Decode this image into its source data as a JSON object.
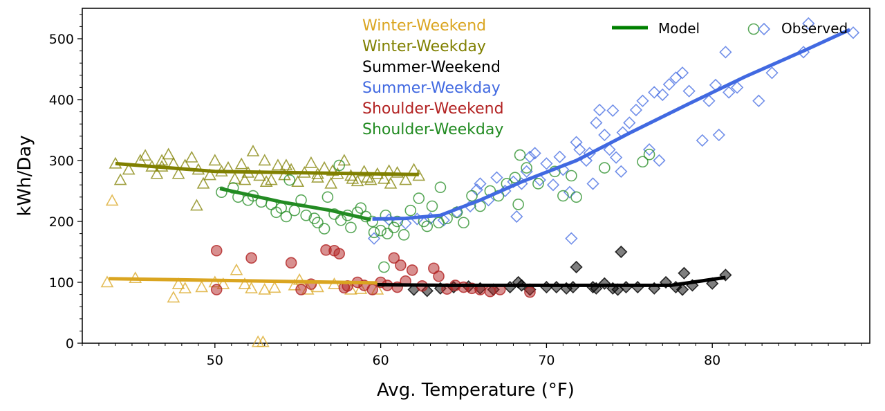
{
  "chart_data": {
    "type": "scatter",
    "xlabel": "Avg. Temperature (°F)",
    "ylabel": "kWh/Day",
    "xlim": [
      42,
      89.5
    ],
    "ylim": [
      0,
      550
    ],
    "xticks": [
      50,
      60,
      70,
      80
    ],
    "yticks": [
      0,
      100,
      200,
      300,
      400,
      500
    ],
    "legend": {
      "model_label": "Model",
      "observed_label": "Observed",
      "position": "top-right"
    },
    "series": [
      {
        "name": "Winter-Weekend",
        "color": "#DAA520",
        "marker": "triangle-open",
        "model": [
          [
            43.6,
            106
          ],
          [
            59.8,
            99
          ]
        ],
        "points": [
          [
            43.5,
            100
          ],
          [
            43.8,
            234
          ],
          [
            45.2,
            107
          ],
          [
            47.8,
            97
          ],
          [
            48.2,
            90
          ],
          [
            49.2,
            92
          ],
          [
            50,
            100
          ],
          [
            50.5,
            97
          ],
          [
            51.3,
            120
          ],
          [
            51.8,
            97
          ],
          [
            52.2,
            90
          ],
          [
            53,
            88
          ],
          [
            53.6,
            91
          ],
          [
            54.8,
            95
          ],
          [
            55.1,
            104
          ],
          [
            55.6,
            88
          ],
          [
            56.2,
            92
          ],
          [
            57.2,
            97
          ],
          [
            58.2,
            88
          ],
          [
            58.8,
            89
          ],
          [
            59.8,
            88
          ],
          [
            52.6,
            2
          ],
          [
            52.9,
            2
          ],
          [
            47.5,
            75
          ]
        ]
      },
      {
        "name": "Winter-Weekday",
        "color": "#808000",
        "marker": "triangle-open",
        "model": [
          [
            44,
            295
          ],
          [
            50,
            282
          ],
          [
            62.3,
            277
          ]
        ],
        "points": [
          [
            44,
            295
          ],
          [
            44.3,
            268
          ],
          [
            44.8,
            285
          ],
          [
            45.5,
            300
          ],
          [
            45.8,
            308
          ],
          [
            46.2,
            290
          ],
          [
            46.5,
            278
          ],
          [
            46.8,
            300
          ],
          [
            47.2,
            310
          ],
          [
            47.5,
            295
          ],
          [
            47.8,
            278
          ],
          [
            48.2,
            292
          ],
          [
            48.6,
            305
          ],
          [
            49,
            285
          ],
          [
            49.3,
            262
          ],
          [
            49.7,
            276
          ],
          [
            50,
            300
          ],
          [
            50.4,
            282
          ],
          [
            50.8,
            288
          ],
          [
            51.2,
            270
          ],
          [
            51.6,
            294
          ],
          [
            52,
            280
          ],
          [
            52.3,
            315
          ],
          [
            52.7,
            275
          ],
          [
            53,
            300
          ],
          [
            53.4,
            268
          ],
          [
            53.8,
            292
          ],
          [
            54.2,
            276
          ],
          [
            54.6,
            285
          ],
          [
            55,
            265
          ],
          [
            55.4,
            280
          ],
          [
            55.8,
            296
          ],
          [
            56.2,
            272
          ],
          [
            56.6,
            288
          ],
          [
            57,
            262
          ],
          [
            57.4,
            278
          ],
          [
            57.8,
            300
          ],
          [
            58.2,
            275
          ],
          [
            58.6,
            266
          ],
          [
            59,
            282
          ],
          [
            59.4,
            268
          ],
          [
            59.8,
            278
          ],
          [
            60.2,
            270
          ],
          [
            60.6,
            262
          ],
          [
            61,
            280
          ],
          [
            61.5,
            268
          ],
          [
            62,
            285
          ],
          [
            62.3,
            275
          ],
          [
            48.9,
            226
          ],
          [
            46.8,
            290
          ],
          [
            53.1,
            265
          ],
          [
            57.1,
            283
          ],
          [
            59.2,
            272
          ],
          [
            56.2,
            278
          ],
          [
            51.8,
            268
          ],
          [
            54.3,
            292
          ],
          [
            58.3,
            270
          ],
          [
            60.5,
            283
          ]
        ]
      },
      {
        "name": "Summer-Weekend",
        "color": "#000000",
        "marker": "diamond-filled",
        "model": [
          [
            59.8,
            96
          ],
          [
            64,
            95
          ],
          [
            72,
            95
          ],
          [
            77.5,
            95
          ],
          [
            80.8,
            108
          ]
        ],
        "points": [
          [
            62,
            88
          ],
          [
            62.8,
            86
          ],
          [
            63.6,
            90
          ],
          [
            64.4,
            92
          ],
          [
            65.3,
            93
          ],
          [
            66,
            90
          ],
          [
            66.8,
            88
          ],
          [
            67.8,
            92
          ],
          [
            68.3,
            100
          ],
          [
            69,
            88
          ],
          [
            70,
            92
          ],
          [
            70.6,
            92
          ],
          [
            71.2,
            90
          ],
          [
            71.6,
            92
          ],
          [
            71.8,
            125
          ],
          [
            72.8,
            92
          ],
          [
            73.5,
            98
          ],
          [
            74,
            90
          ],
          [
            74.3,
            88
          ],
          [
            74.8,
            92
          ],
          [
            74.5,
            150
          ],
          [
            75.5,
            92
          ],
          [
            76.5,
            90
          ],
          [
            77.2,
            100
          ],
          [
            77.8,
            92
          ],
          [
            78.2,
            88
          ],
          [
            78.3,
            115
          ],
          [
            78.8,
            95
          ],
          [
            80,
            98
          ],
          [
            80.8,
            112
          ],
          [
            68.5,
            95
          ],
          [
            73,
            90
          ]
        ]
      },
      {
        "name": "Summer-Weekday",
        "color": "#4169E1",
        "marker": "diamond-open",
        "model": [
          [
            59.5,
            204
          ],
          [
            61.5,
            205
          ],
          [
            63.6,
            210
          ],
          [
            66,
            235
          ],
          [
            68.5,
            265
          ],
          [
            71.8,
            300
          ],
          [
            75,
            345
          ],
          [
            78.5,
            392
          ],
          [
            82,
            438
          ],
          [
            85.5,
            480
          ],
          [
            88.3,
            515
          ]
        ],
        "points": [
          [
            59.6,
            172
          ],
          [
            60.5,
            203
          ],
          [
            61.5,
            197
          ],
          [
            62.2,
            204
          ],
          [
            63,
            205
          ],
          [
            63.8,
            202
          ],
          [
            64.6,
            215
          ],
          [
            65.4,
            225
          ],
          [
            65.8,
            252
          ],
          [
            66,
            262
          ],
          [
            66.5,
            235
          ],
          [
            67,
            272
          ],
          [
            67.5,
            250
          ],
          [
            68,
            265
          ],
          [
            68.2,
            208
          ],
          [
            68.5,
            262
          ],
          [
            68.8,
            282
          ],
          [
            69,
            306
          ],
          [
            69.3,
            312
          ],
          [
            69.6,
            268
          ],
          [
            70,
            295
          ],
          [
            70.4,
            260
          ],
          [
            70.8,
            306
          ],
          [
            71,
            285
          ],
          [
            71.4,
            248
          ],
          [
            71.5,
            172
          ],
          [
            71.8,
            330
          ],
          [
            72,
            318
          ],
          [
            72.4,
            300
          ],
          [
            72.8,
            262
          ],
          [
            73,
            362
          ],
          [
            73.2,
            383
          ],
          [
            73.5,
            342
          ],
          [
            73.8,
            318
          ],
          [
            74,
            382
          ],
          [
            74.2,
            305
          ],
          [
            74.6,
            346
          ],
          [
            75,
            362
          ],
          [
            75.4,
            383
          ],
          [
            75.8,
            398
          ],
          [
            76.2,
            318
          ],
          [
            76.5,
            412
          ],
          [
            77,
            408
          ],
          [
            77.4,
            425
          ],
          [
            77.8,
            436
          ],
          [
            78.2,
            444
          ],
          [
            78.6,
            414
          ],
          [
            79.4,
            333
          ],
          [
            80.2,
            424
          ],
          [
            80.8,
            478
          ],
          [
            81,
            412
          ],
          [
            81.5,
            420
          ],
          [
            82.8,
            398
          ],
          [
            83.6,
            444
          ],
          [
            85.5,
            478
          ],
          [
            85.8,
            525
          ],
          [
            88.5,
            510
          ],
          [
            76.8,
            300
          ],
          [
            80.4,
            342
          ],
          [
            72.6,
            312
          ],
          [
            74.5,
            282
          ],
          [
            79.8,
            398
          ]
        ]
      },
      {
        "name": "Shoulder-Weekend",
        "color": "#B22222",
        "marker": "circle-filled",
        "model": [],
        "points": [
          [
            50.1,
            88
          ],
          [
            50.1,
            152
          ],
          [
            52.2,
            140
          ],
          [
            54.6,
            132
          ],
          [
            55.8,
            97
          ],
          [
            56.7,
            153
          ],
          [
            57.2,
            152
          ],
          [
            57.5,
            147
          ],
          [
            57.8,
            91
          ],
          [
            58.6,
            100
          ],
          [
            59,
            95
          ],
          [
            59.5,
            88
          ],
          [
            60.4,
            95
          ],
          [
            60.8,
            140
          ],
          [
            61,
            92
          ],
          [
            61.2,
            128
          ],
          [
            61.5,
            102
          ],
          [
            61.9,
            120
          ],
          [
            62.5,
            94
          ],
          [
            63.2,
            123
          ],
          [
            63.5,
            110
          ],
          [
            64,
            89
          ],
          [
            64.5,
            95
          ],
          [
            65,
            92
          ],
          [
            65.5,
            90
          ],
          [
            66,
            88
          ],
          [
            66.6,
            85
          ],
          [
            67.2,
            88
          ],
          [
            69,
            84
          ],
          [
            60,
            100
          ],
          [
            58,
            94
          ],
          [
            55.2,
            88
          ]
        ]
      },
      {
        "name": "Shoulder-Weekday",
        "color": "#228B22",
        "marker": "circle-open",
        "model": [
          [
            50.3,
            254
          ],
          [
            54,
            232
          ],
          [
            57,
            218
          ],
          [
            59.4,
            203
          ]
        ],
        "points": [
          [
            50.4,
            248
          ],
          [
            51.1,
            255
          ],
          [
            51.4,
            240
          ],
          [
            52,
            235
          ],
          [
            52.3,
            242
          ],
          [
            52.8,
            232
          ],
          [
            53.4,
            228
          ],
          [
            53.7,
            215
          ],
          [
            54,
            222
          ],
          [
            54.3,
            208
          ],
          [
            54.8,
            218
          ],
          [
            55.2,
            235
          ],
          [
            55.5,
            210
          ],
          [
            56,
            205
          ],
          [
            56.2,
            198
          ],
          [
            56.6,
            188
          ],
          [
            56.8,
            240
          ],
          [
            57.2,
            212
          ],
          [
            57.6,
            202
          ],
          [
            58,
            210
          ],
          [
            58.2,
            190
          ],
          [
            58.6,
            215
          ],
          [
            58.8,
            222
          ],
          [
            59.1,
            208
          ],
          [
            59.5,
            200
          ],
          [
            59.6,
            182
          ],
          [
            60,
            185
          ],
          [
            60.2,
            125
          ],
          [
            60.4,
            180
          ],
          [
            60.8,
            190
          ],
          [
            61,
            200
          ],
          [
            61.4,
            178
          ],
          [
            61.8,
            218
          ],
          [
            62.3,
            238
          ],
          [
            62.8,
            192
          ],
          [
            63.1,
            225
          ],
          [
            63.5,
            198
          ],
          [
            63.6,
            256
          ],
          [
            64,
            205
          ],
          [
            64.6,
            215
          ],
          [
            65,
            198
          ],
          [
            65.5,
            242
          ],
          [
            66,
            225
          ],
          [
            66.6,
            250
          ],
          [
            67.1,
            242
          ],
          [
            67.6,
            262
          ],
          [
            68.1,
            272
          ],
          [
            68.3,
            228
          ],
          [
            68.4,
            309
          ],
          [
            68.8,
            288
          ],
          [
            69.5,
            262
          ],
          [
            70.5,
            282
          ],
          [
            71,
            242
          ],
          [
            71.5,
            275
          ],
          [
            71.8,
            240
          ],
          [
            73.5,
            288
          ],
          [
            75.8,
            298
          ],
          [
            76.2,
            310
          ],
          [
            57.5,
            292
          ],
          [
            54.5,
            268
          ],
          [
            60.3,
            210
          ],
          [
            62.6,
            200
          ]
        ]
      }
    ]
  }
}
